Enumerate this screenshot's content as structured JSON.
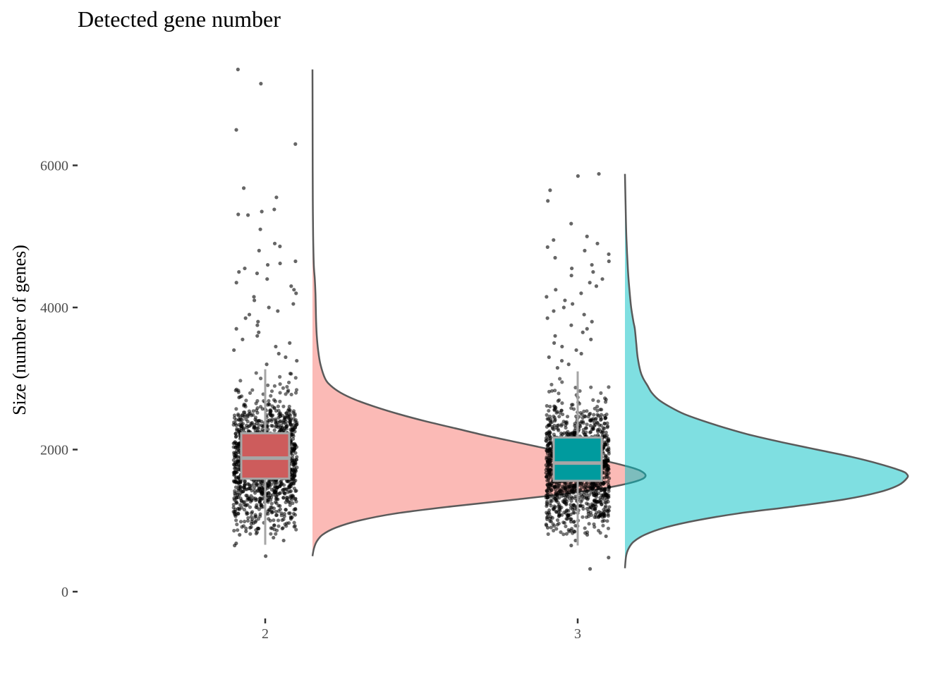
{
  "chart_data": {
    "type": "raincloud",
    "title": "Detected gene number",
    "xlabel": "",
    "ylabel": "Size (number of genes)",
    "ylim": [
      0,
      7400
    ],
    "y_ticks": [
      0,
      2000,
      4000,
      6000
    ],
    "y_tick_labels": [
      "0",
      "2000",
      "4000",
      "6000"
    ],
    "categories": [
      "2",
      "3"
    ],
    "grid": false,
    "legend": "none",
    "groups": [
      {
        "category": "2",
        "color": "#F8766D",
        "box_color": "#CD5C5C",
        "box": {
          "min": 660,
          "q1": 1590,
          "median": 1880,
          "q3": 2230,
          "whisker_high": 3130,
          "max": 7350
        },
        "density": {
          "y": [
            500,
            600,
            700,
            800,
            900,
            1000,
            1100,
            1200,
            1300,
            1400,
            1500,
            1600,
            1700,
            1800,
            1900,
            2000,
            2100,
            2200,
            2300,
            2400,
            2500,
            2600,
            2700,
            2800,
            2900,
            3000,
            3200,
            3400,
            3600,
            3800,
            4000,
            4200,
            4400,
            4600,
            5000,
            5500,
            6000,
            6500,
            7000,
            7350
          ],
          "d": [
            0.0,
            0.004,
            0.012,
            0.03,
            0.07,
            0.14,
            0.25,
            0.42,
            0.62,
            0.8,
            0.93,
            1.0,
            0.99,
            0.92,
            0.82,
            0.72,
            0.62,
            0.52,
            0.43,
            0.34,
            0.26,
            0.19,
            0.13,
            0.085,
            0.055,
            0.038,
            0.024,
            0.017,
            0.013,
            0.011,
            0.01,
            0.009,
            0.007,
            0.004,
            0.002,
            0.001,
            0.0006,
            0.0004,
            0.0002,
            0.0
          ]
        },
        "outliers": [
          7350,
          7150,
          6500,
          6300,
          5680,
          5550,
          5380,
          5350,
          5310,
          5300,
          5100,
          4900,
          4860,
          4800,
          4650,
          4620,
          4600,
          4550,
          4500,
          4480,
          4400,
          4350,
          4300,
          4250,
          4200,
          4150,
          4100,
          4050,
          4000,
          3950,
          3900,
          3850,
          3800,
          3750,
          3700,
          3650,
          3600,
          3550,
          3500,
          3450,
          3400,
          3350,
          3300,
          3250,
          3200,
          900,
          850,
          800,
          760,
          720,
          680,
          650,
          500
        ]
      },
      {
        "category": "3",
        "color": "#00BFC4",
        "box_color": "#009B9E",
        "box": {
          "min": 650,
          "q1": 1560,
          "median": 1810,
          "q3": 2170,
          "whisker_high": 3100,
          "max": 5880
        },
        "density": {
          "y": [
            330,
            500,
            600,
            700,
            800,
            900,
            1000,
            1100,
            1200,
            1300,
            1400,
            1500,
            1600,
            1650,
            1700,
            1800,
            1900,
            2000,
            2100,
            2200,
            2300,
            2400,
            2500,
            2600,
            2700,
            2800,
            2900,
            3000,
            3100,
            3300,
            3500,
            3700,
            3800,
            4000,
            4200,
            4500,
            5000,
            5500,
            5880
          ],
          "d": [
            0.0,
            0.004,
            0.012,
            0.03,
            0.07,
            0.14,
            0.25,
            0.4,
            0.6,
            0.78,
            0.9,
            0.97,
            1.0,
            1.0,
            0.98,
            0.9,
            0.8,
            0.68,
            0.56,
            0.45,
            0.36,
            0.28,
            0.21,
            0.16,
            0.12,
            0.095,
            0.08,
            0.065,
            0.055,
            0.045,
            0.04,
            0.035,
            0.03,
            0.022,
            0.017,
            0.011,
            0.005,
            0.002,
            0.0
          ]
        },
        "outliers": [
          5880,
          5850,
          5650,
          5500,
          5180,
          5000,
          4950,
          4900,
          4850,
          4800,
          4750,
          4700,
          4650,
          4600,
          4550,
          4500,
          4450,
          4400,
          4350,
          4300,
          4250,
          4200,
          4150,
          4100,
          4050,
          4000,
          3950,
          3900,
          3850,
          3800,
          3750,
          3700,
          3650,
          3600,
          3550,
          3500,
          3450,
          3400,
          3350,
          3300,
          3250,
          3200,
          3150,
          900,
          850,
          800,
          780,
          720,
          650,
          480,
          320
        ]
      }
    ]
  }
}
